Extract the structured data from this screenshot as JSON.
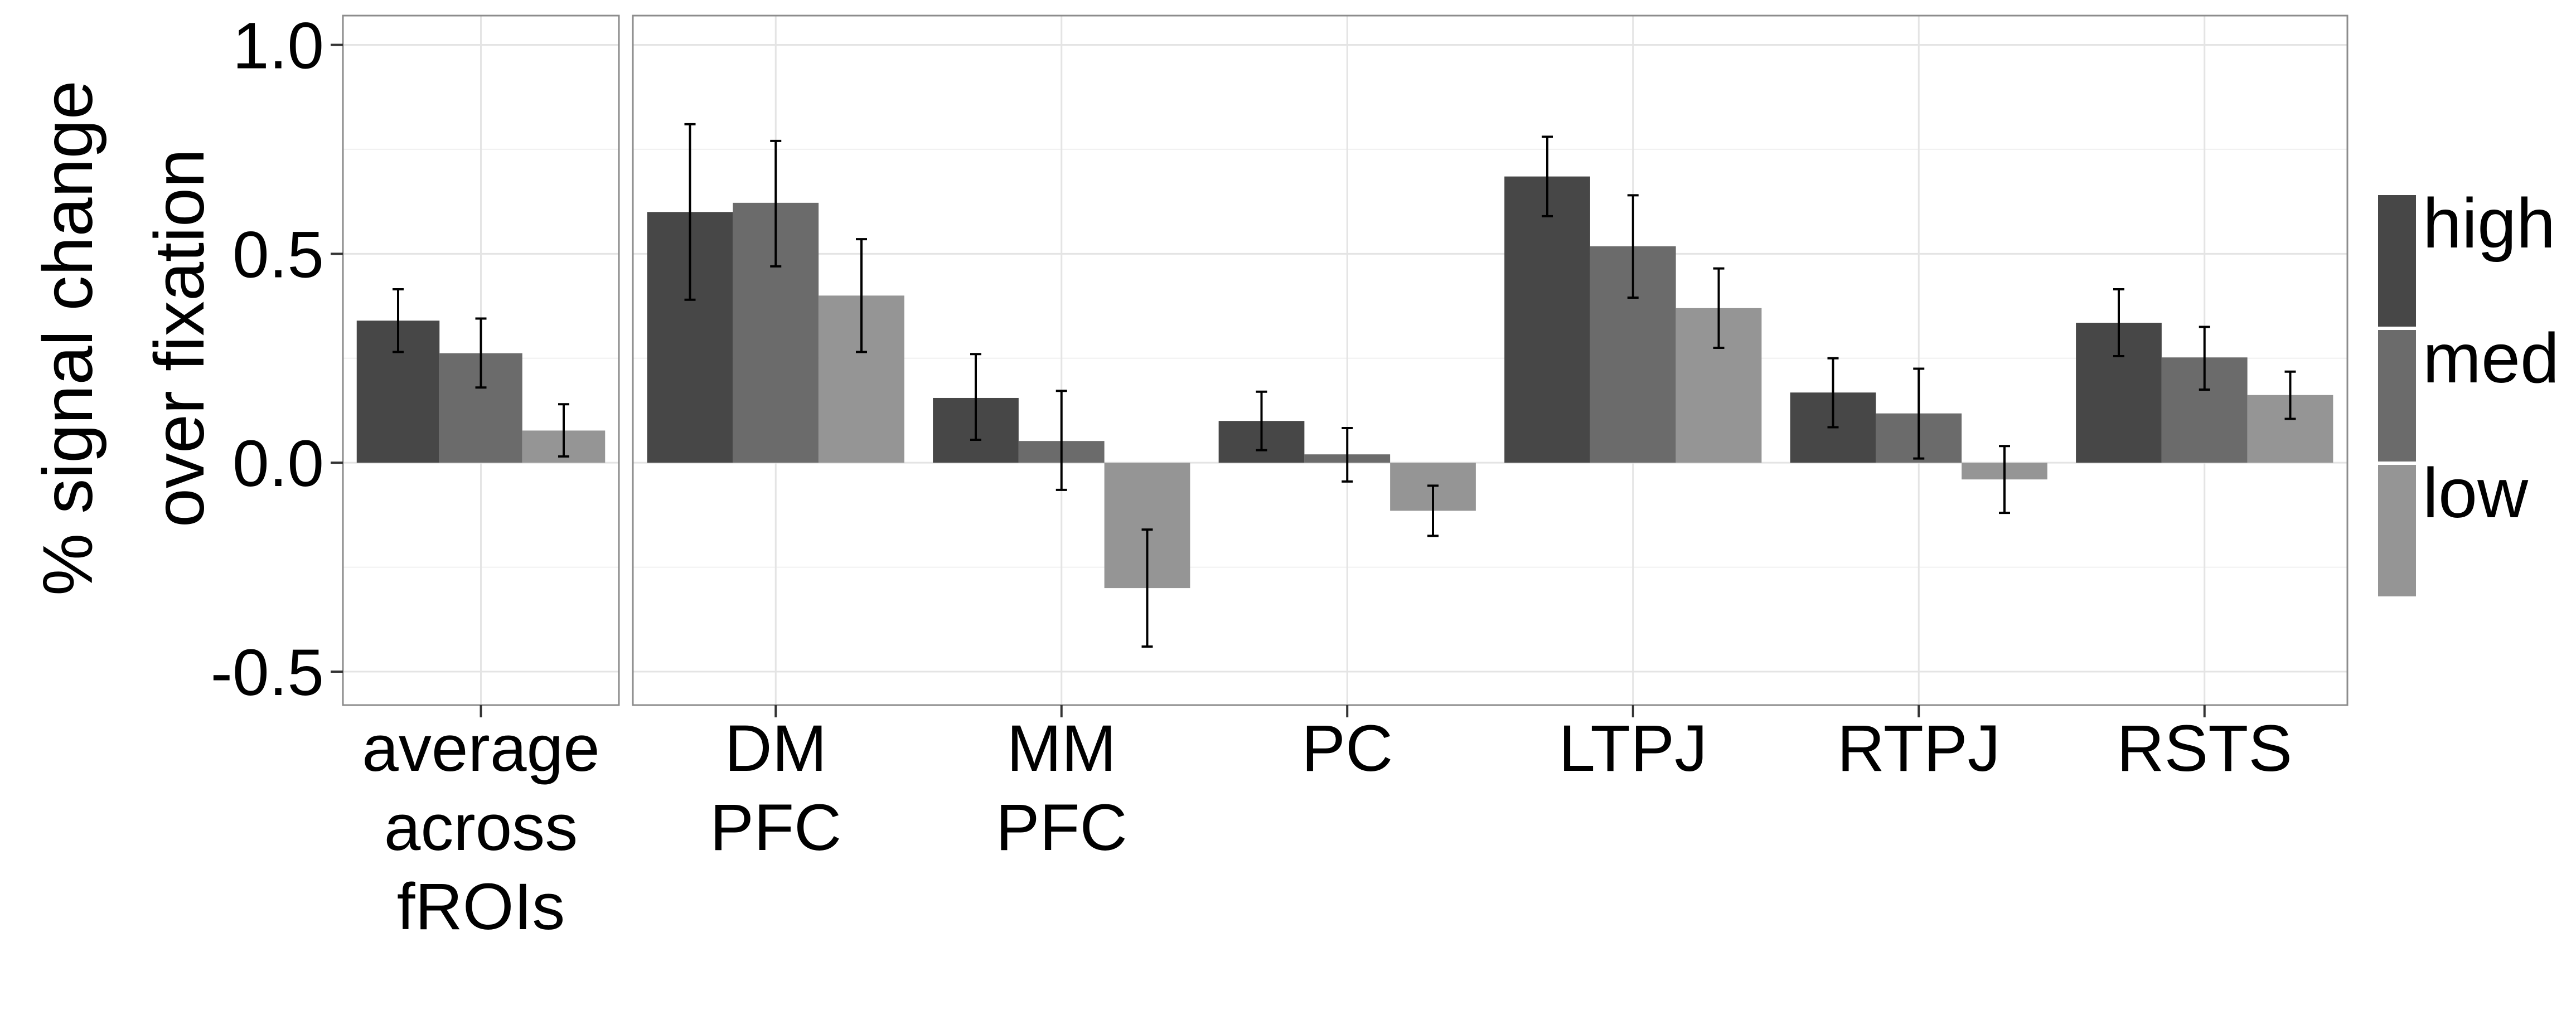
{
  "chart_data": {
    "type": "bar",
    "ylabel": [
      "% signal change",
      "over fixation"
    ],
    "ylim": [
      -0.58,
      1.07
    ],
    "y_ticks": [
      "1.0",
      "0.5",
      "0.0",
      "-0.5"
    ],
    "y_tick_values": [
      1.0,
      0.5,
      0.0,
      -0.5
    ],
    "grid": true,
    "legend_position": "right",
    "panels": [
      {
        "categories": [
          [
            "average",
            "across",
            "fROIs"
          ]
        ],
        "series": [
          {
            "name": "high",
            "values": [
              0.34
            ],
            "err_low": [
              0.265
            ],
            "err_high": [
              0.415
            ]
          },
          {
            "name": "med",
            "values": [
              0.262
            ],
            "err_low": [
              0.18
            ],
            "err_high": [
              0.345
            ]
          },
          {
            "name": "low",
            "values": [
              0.077
            ],
            "err_low": [
              0.015
            ],
            "err_high": [
              0.14
            ]
          }
        ]
      },
      {
        "categories": [
          [
            "DM",
            "PFC"
          ],
          [
            "MM",
            "PFC"
          ],
          [
            "PC"
          ],
          [
            "LTPJ"
          ],
          [
            "RTPJ"
          ],
          [
            "RSTS"
          ]
        ],
        "series": [
          {
            "name": "high",
            "values": [
              0.6,
              0.155,
              0.1,
              0.685,
              0.168,
              0.335
            ],
            "err_low": [
              0.39,
              0.055,
              0.03,
              0.59,
              0.085,
              0.255
            ],
            "err_high": [
              0.81,
              0.26,
              0.17,
              0.78,
              0.25,
              0.415
            ]
          },
          {
            "name": "med",
            "values": [
              0.622,
              0.052,
              0.02,
              0.518,
              0.118,
              0.252
            ],
            "err_low": [
              0.47,
              -0.065,
              -0.045,
              0.395,
              0.01,
              0.175
            ],
            "err_high": [
              0.77,
              0.172,
              0.083,
              0.64,
              0.225,
              0.325
            ]
          },
          {
            "name": "low",
            "values": [
              0.4,
              -0.3,
              -0.115,
              0.37,
              -0.04,
              0.162
            ],
            "err_low": [
              0.265,
              -0.44,
              -0.175,
              0.275,
              -0.12,
              0.105
            ],
            "err_high": [
              0.535,
              -0.16,
              -0.055,
              0.465,
              0.04,
              0.218
            ]
          }
        ]
      }
    ],
    "legend": [
      "high",
      "med",
      "low"
    ],
    "colors": {
      "high": "#474747",
      "med": "#6b6b6b",
      "low": "#959595"
    }
  }
}
